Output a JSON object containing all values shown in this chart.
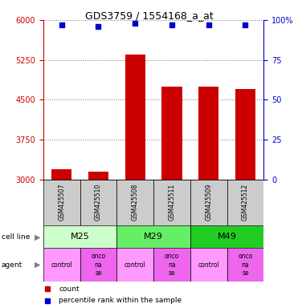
{
  "title": "GDS3759 / 1554168_a_at",
  "samples": [
    "GSM425507",
    "GSM425510",
    "GSM425508",
    "GSM425511",
    "GSM425509",
    "GSM425512"
  ],
  "bar_values": [
    3200,
    3150,
    5350,
    4750,
    4750,
    4700
  ],
  "percentile_values": [
    97,
    96,
    98,
    97,
    97,
    97
  ],
  "bar_color": "#cc0000",
  "dot_color": "#0000cc",
  "ylim_left": [
    3000,
    6000
  ],
  "ylim_right": [
    0,
    100
  ],
  "yticks_left": [
    3000,
    3750,
    4500,
    5250,
    6000
  ],
  "yticks_right": [
    0,
    25,
    50,
    75,
    100
  ],
  "left_tick_color": "#cc0000",
  "right_tick_color": "#0000cc",
  "cell_line_groups": [
    {
      "name": "M25",
      "span": [
        0,
        2
      ],
      "color": "#ccffcc"
    },
    {
      "name": "M29",
      "span": [
        2,
        4
      ],
      "color": "#66ee66"
    },
    {
      "name": "M49",
      "span": [
        4,
        6
      ],
      "color": "#22cc22"
    }
  ],
  "cell_line_label": "cell line",
  "agent_label": "agent",
  "agent_cells": [
    "control",
    "onconase",
    "control",
    "onconase",
    "control",
    "onconase"
  ],
  "agent_colors": [
    "#ff99ff",
    "#ee66ee",
    "#ff99ff",
    "#ee66ee",
    "#ff99ff",
    "#ee66ee"
  ],
  "legend_count_color": "#cc0000",
  "legend_dot_color": "#0000cc",
  "background_color": "#ffffff",
  "grid_color": "#777777",
  "sample_box_color": "#cccccc"
}
